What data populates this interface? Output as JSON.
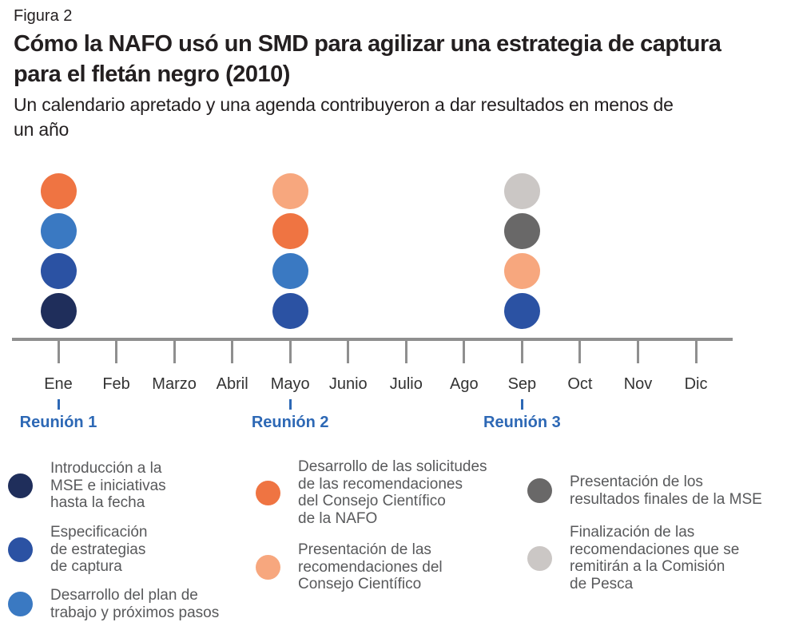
{
  "figure_label": "Figura 2",
  "title_lines": [
    "Cómo la NAFO usó un SMD para agilizar una estrategia de captura",
    "para el fletán negro (2010)"
  ],
  "subtitle_lines": [
    "Un calendario apretado y una agenda contribuyeron a dar resultados en menos de",
    "un año"
  ],
  "colors": {
    "navy": "#1F2E5B",
    "dark_blue": "#2B52A3",
    "medium_blue": "#3A79C2",
    "orange": "#EF7442",
    "salmon": "#F7A77E",
    "dark_gray": "#696868",
    "light_gray": "#CBC7C5",
    "axis_gray": "#8F8F8F",
    "meeting_blue": "#2D68B5",
    "heading_text": "#231F20",
    "month_text": "#333333",
    "legend_text": "#58595B"
  },
  "timeline": {
    "months": [
      "Ene",
      "Feb",
      "Marzo",
      "Abril",
      "Mayo",
      "Junio",
      "Julio",
      "Ago",
      "Sep",
      "Oct",
      "Nov",
      "Dic"
    ],
    "meetings": [
      {
        "label": "Reunión 1",
        "month": "Ene",
        "month_index": 0,
        "dots_top_to_bottom": [
          "orange",
          "medium_blue",
          "dark_blue",
          "navy"
        ]
      },
      {
        "label": "Reunión 2",
        "month": "Mayo",
        "month_index": 4,
        "dots_top_to_bottom": [
          "salmon",
          "orange",
          "medium_blue",
          "dark_blue"
        ]
      },
      {
        "label": "Reunión 3",
        "month": "Sep",
        "month_index": 8,
        "dots_top_to_bottom": [
          "light_gray",
          "dark_gray",
          "salmon",
          "dark_blue"
        ]
      }
    ]
  },
  "legend": {
    "columns": [
      {
        "items": [
          {
            "color_key": "navy",
            "lines": [
              "Introducción a la",
              "MSE e iniciativas",
              "hasta la fecha"
            ]
          },
          {
            "color_key": "dark_blue",
            "lines": [
              "Especificación",
              "de estrategias",
              "de captura"
            ]
          },
          {
            "color_key": "medium_blue",
            "lines": [
              "Desarrollo del plan de",
              "trabajo y próximos pasos"
            ]
          }
        ]
      },
      {
        "items": [
          {
            "color_key": "orange",
            "lines": [
              "Desarrollo de las solicitudes",
              "de las recomendaciones",
              "del Consejo Científico",
              "de la NAFO"
            ]
          },
          {
            "color_key": "salmon",
            "lines": [
              "Presentación de las",
              "recomendaciones del",
              "Consejo Científico"
            ]
          }
        ]
      },
      {
        "items": [
          {
            "color_key": "dark_gray",
            "lines": [
              "Presentación de los",
              "resultados finales de la MSE"
            ]
          },
          {
            "color_key": "light_gray",
            "lines": [
              "Finalización de las",
              "recomendaciones que se",
              "remitirán a la Comisión",
              "de Pesca"
            ]
          }
        ]
      }
    ]
  }
}
